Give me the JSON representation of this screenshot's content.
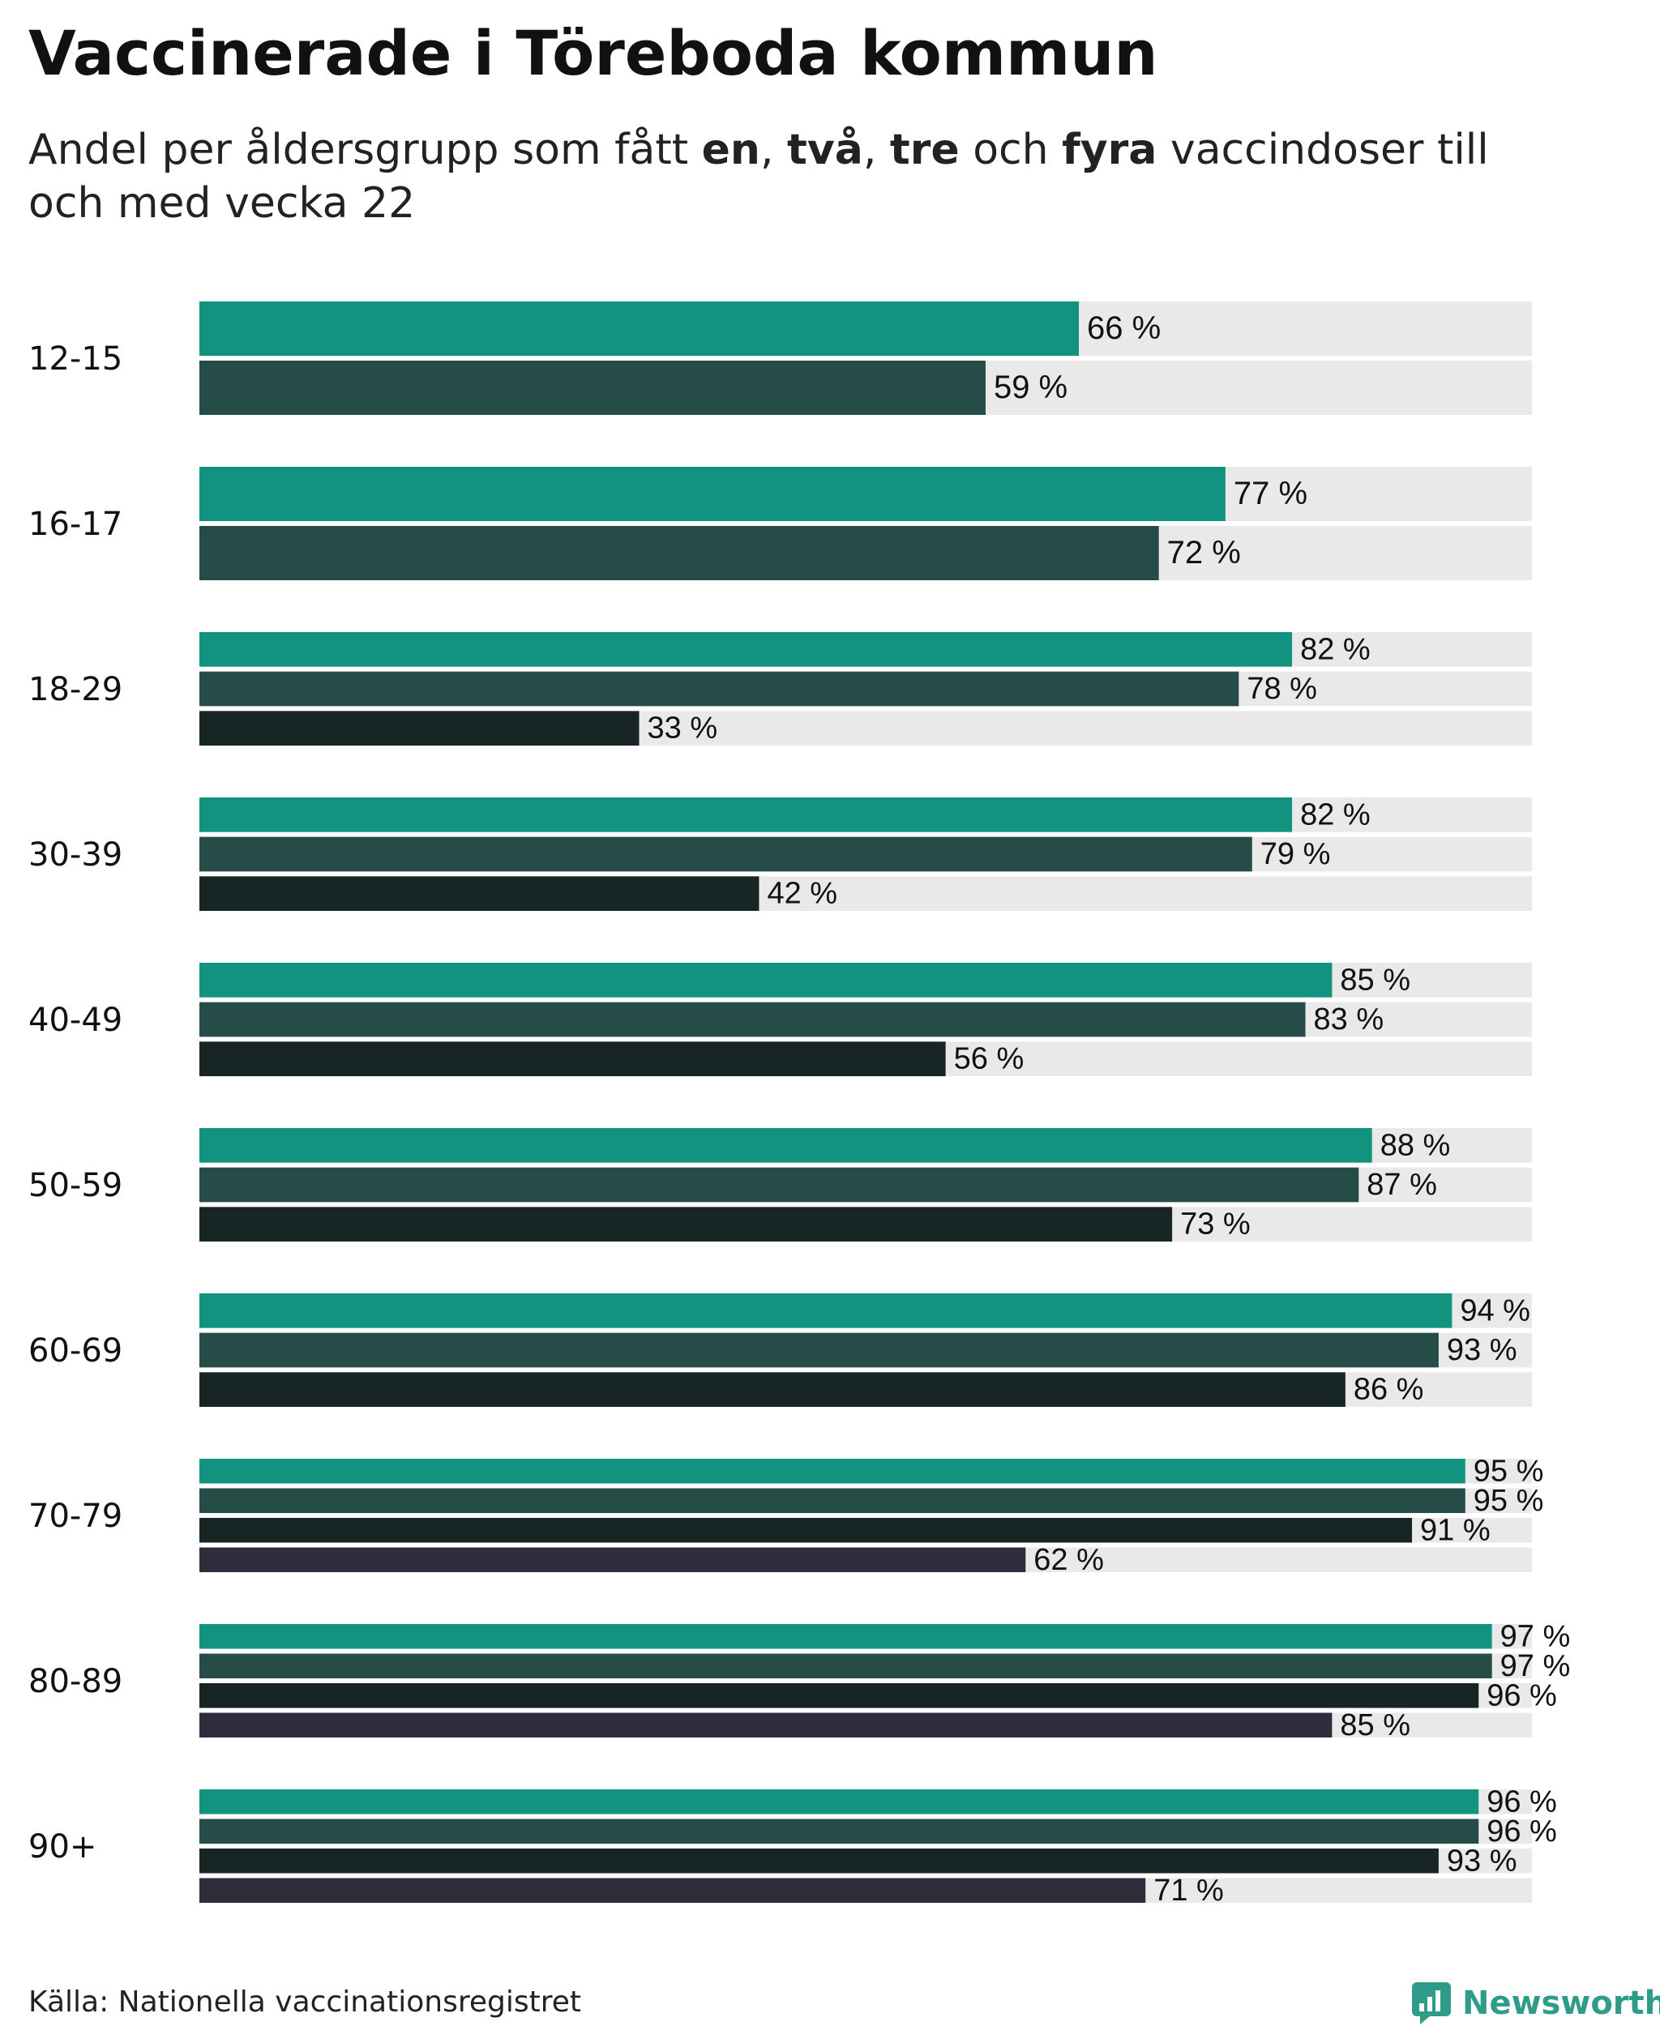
{
  "header": {
    "title": "Vaccinerade i Töreboda kommun",
    "subtitle_prefix": "Andel per åldersgrupp som fått ",
    "kw_one": "en",
    "sep1": ", ",
    "kw_two": "två",
    "sep2": ", ",
    "kw_three": "tre",
    "sep3": " och ",
    "kw_four": "fyra",
    "subtitle_suffix": " vaccindoser till och med vecka 22"
  },
  "colors": {
    "one": "#12937f",
    "two": "#264c48",
    "three": "#172625",
    "four": "#302c3b",
    "track": "#e9e9e9"
  },
  "chart_data": {
    "type": "bar",
    "orientation": "horizontal",
    "title": "Vaccinerade i Töreboda kommun",
    "subtitle": "Andel per åldersgrupp som fått en, två, tre och fyra vaccindoser till och med vecka 22",
    "xlim": [
      0,
      100
    ],
    "value_suffix": " %",
    "categories": [
      "12-15",
      "16-17",
      "18-29",
      "30-39",
      "40-49",
      "50-59",
      "60-69",
      "70-79",
      "80-89",
      "90+"
    ],
    "series": [
      {
        "name": "en",
        "color_key": "one",
        "values": [
          66,
          77,
          82,
          82,
          85,
          88,
          94,
          95,
          97,
          96
        ]
      },
      {
        "name": "två",
        "color_key": "two",
        "values": [
          59,
          72,
          78,
          79,
          83,
          87,
          93,
          95,
          97,
          96
        ]
      },
      {
        "name": "tre",
        "color_key": "three",
        "values": [
          null,
          null,
          33,
          42,
          56,
          73,
          86,
          91,
          96,
          93
        ]
      },
      {
        "name": "fyra",
        "color_key": "four",
        "values": [
          null,
          null,
          null,
          null,
          null,
          null,
          null,
          62,
          85,
          71
        ]
      }
    ]
  },
  "footer": {
    "source": "Källa: Nationella vaccinationsregistret",
    "brand": "Newsworthy"
  }
}
